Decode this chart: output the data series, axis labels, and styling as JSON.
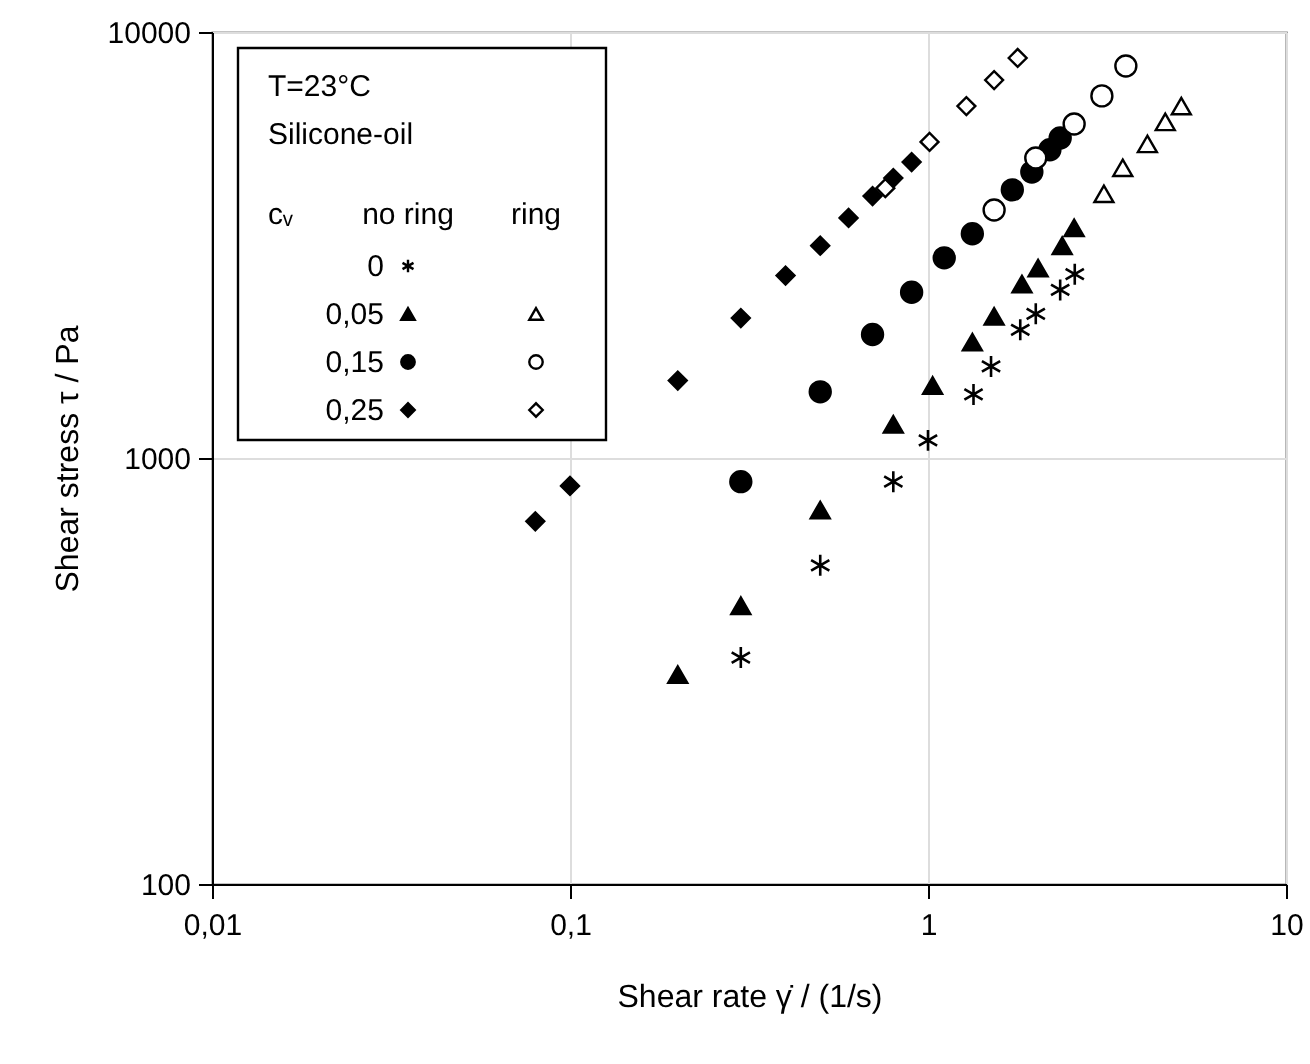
{
  "chart_data": {
    "type": "scatter",
    "xlabel": "Shear rate γ̇ / (1/s)",
    "ylabel": "Shear stress τ / Pa",
    "log": "xy",
    "grid": true,
    "legend": "top left",
    "xlim": [
      0.01,
      10
    ],
    "xticks": [
      {
        "value": 0.01,
        "label": "0,01"
      },
      {
        "value": 0.1,
        "label": "0,1"
      },
      1,
      10
    ],
    "ylim": [
      100,
      10000
    ],
    "yticks": [
      100,
      1000,
      10000
    ],
    "annotations": [
      "T=23°C",
      "Silicone-oil",
      "cᵥ",
      "no ring",
      "ring"
    ],
    "series": [
      {
        "name": "0",
        "color": "#000000",
        "marker": "cross",
        "x": [
          0.3,
          0.5,
          0.8,
          1.0,
          1.34,
          1.5,
          1.81,
          2.0,
          2.34,
          2.57
        ],
        "values": [
          340,
          560,
          880,
          1100,
          1410,
          1640,
          2000,
          2180,
          2480,
          2700
        ]
      },
      {
        "name": "0,05",
        "color": "#000000",
        "marker": "triangle",
        "x": [
          0.2,
          0.3,
          0.5,
          0.8,
          1.03,
          1.33,
          1.53,
          1.83,
          2.03,
          2.37,
          2.56
        ],
        "values": [
          310,
          450,
          755,
          1200,
          1480,
          1870,
          2150,
          2560,
          2790,
          3150,
          3470
        ]
      },
      {
        "color": "#ffffff",
        "marker": "triangle",
        "x": [
          3.1,
          3.5,
          4.1,
          4.6,
          5.1
        ],
        "values": [
          4170,
          4800,
          5460,
          6150,
          6700
        ]
      },
      {
        "name": "0,15",
        "color": "#000000",
        "marker": "circle",
        "x": [
          0.3,
          0.5,
          0.7,
          0.9,
          1.11,
          1.33,
          1.72,
          1.95,
          2.19,
          2.34
        ],
        "values": [
          880,
          1430,
          1950,
          2450,
          2950,
          3360,
          4260,
          4690,
          5290,
          5640
        ]
      },
      {
        "color": "#ffffff",
        "marker": "circle",
        "x": [
          1.53,
          2.0,
          2.56,
          3.06,
          3.57
        ],
        "values": [
          3820,
          5060,
          6080,
          7080,
          8320
        ]
      },
      {
        "name": "0,25",
        "color": "#000000",
        "marker": "diamond",
        "x": [
          0.08,
          0.1,
          0.2,
          0.3,
          0.4,
          0.5,
          0.6,
          0.7,
          0.8,
          0.9
        ],
        "values": [
          710,
          860,
          1520,
          2130,
          2680,
          3150,
          3660,
          4120,
          4540,
          4950
        ]
      },
      {
        "color": "#ffffff",
        "marker": "diamond",
        "x": [
          0.76,
          1.01,
          1.28,
          1.53,
          1.78
        ],
        "values": [
          4300,
          5520,
          6700,
          7710,
          8690
        ]
      }
    ]
  }
}
